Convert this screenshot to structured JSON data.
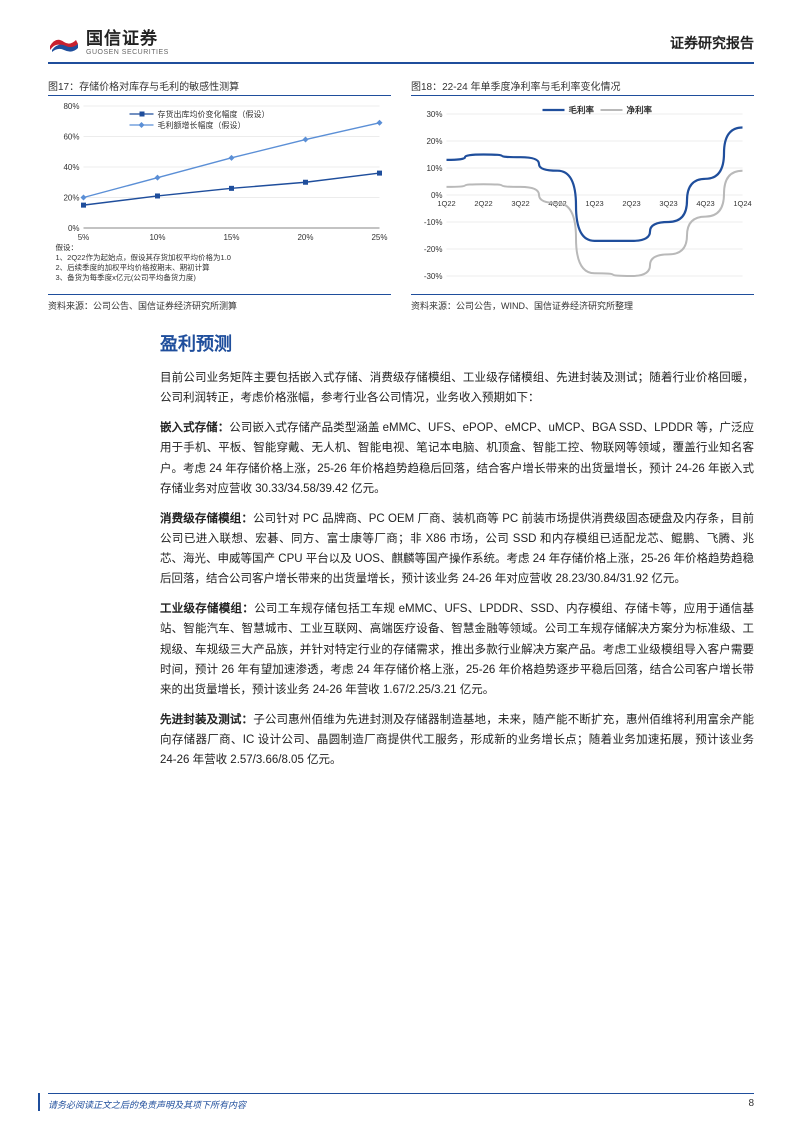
{
  "header": {
    "logo_cn": "国信证券",
    "logo_en": "GUOSEN SECURITIES",
    "report_type": "证券研究报告",
    "logo_colors": {
      "red": "#c8202f",
      "blue": "#1f4e9c"
    },
    "rule_color": "#1f4e9c"
  },
  "chart17": {
    "caption": "图17：存储价格对库存与毛利的敏感性测算",
    "type": "line",
    "x_labels": [
      "5%",
      "10%",
      "15%",
      "20%",
      "25%"
    ],
    "y_ticks": [
      "0%",
      "20%",
      "40%",
      "60%",
      "80%"
    ],
    "ylim": [
      0,
      80
    ],
    "series": [
      {
        "name": "存货出库均价变化幅度（假设）",
        "marker": "square",
        "color": "#1f4e9c",
        "values": [
          15,
          21,
          26,
          30,
          36
        ]
      },
      {
        "name": "毛利额增长幅度（假设）",
        "marker": "diamond",
        "color": "#5b8fd6",
        "values": [
          20,
          33,
          46,
          58,
          69
        ]
      }
    ],
    "assumptions": [
      "假设：",
      "1、2Q22作为起始点，假设其存货加权平均价格为1.0",
      "2、后续季度的加权平均价格按期末、期初计算",
      "3、备货为每季度x亿元(公司平均备货力度)"
    ],
    "source": "资料来源：公司公告、国信证券经济研究所测算",
    "grid_color": "#d9d9d9",
    "axis_color": "#666666",
    "font_size": 8
  },
  "chart18": {
    "caption": "图18：22-24 年单季度净利率与毛利率变化情况",
    "type": "line",
    "x_labels": [
      "1Q22",
      "2Q22",
      "3Q22",
      "4Q22",
      "1Q23",
      "2Q23",
      "3Q23",
      "4Q23",
      "1Q24"
    ],
    "y_ticks": [
      "-30%",
      "-20%",
      "-10%",
      "0%",
      "10%",
      "20%",
      "30%"
    ],
    "ylim": [
      -30,
      30
    ],
    "series": [
      {
        "name": "毛利率",
        "color": "#1f4e9c",
        "width": 2.2,
        "values": [
          13,
          15,
          14,
          9,
          -17,
          -17,
          -10,
          6,
          25
        ]
      },
      {
        "name": "净利率",
        "color": "#b9b9b9",
        "width": 2.0,
        "values": [
          3,
          4,
          3,
          -3,
          -29,
          -30,
          -22,
          -8,
          9
        ]
      }
    ],
    "source": "资料来源：公司公告，WIND、国信证券经济研究所整理",
    "grid_color": "#d9d9d9",
    "axis_color": "#666666",
    "font_size": 8
  },
  "section": {
    "title": "盈利预测",
    "intro": "目前公司业务矩阵主要包括嵌入式存储、消费级存储模组、工业级存储模组、先进封装及测试；随着行业价格回暖，公司利润转正，考虑价格涨幅，参考行业各公司情况，业务收入预期如下：",
    "p1_label": "嵌入式存储：",
    "p1_body": "公司嵌入式存储产品类型涵盖 eMMC、UFS、ePOP、eMCP、uMCP、BGA SSD、LPDDR 等，广泛应用于手机、平板、智能穿戴、无人机、智能电视、笔记本电脑、机顶盒、智能工控、物联网等领域，覆盖行业知名客户。考虑 24 年存储价格上涨，25-26 年价格趋势趋稳后回落，结合客户增长带来的出货量增长，预计 24-26 年嵌入式存储业务对应营收 30.33/34.58/39.42 亿元。",
    "p2_label": "消费级存储模组：",
    "p2_body": "公司针对 PC 品牌商、PC OEM 厂商、装机商等 PC 前装市场提供消费级固态硬盘及内存条，目前公司已进入联想、宏碁、同方、富士康等厂商；非 X86 市场，公司 SSD 和内存模组已适配龙芯、鲲鹏、飞腾、兆芯、海光、申威等国产 CPU 平台以及 UOS、麒麟等国产操作系统。考虑 24 年存储价格上涨，25-26 年价格趋势趋稳后回落，结合公司客户增长带来的出货量增长，预计该业务 24-26 年对应营收 28.23/30.84/31.92 亿元。",
    "p3_label": "工业级存储模组：",
    "p3_body": "公司工车规存储包括工车规 eMMC、UFS、LPDDR、SSD、内存模组、存储卡等，应用于通信基站、智能汽车、智慧城市、工业互联网、高端医疗设备、智慧金融等领域。公司工车规存储解决方案分为标准级、工规级、车规级三大产品族，并针对特定行业的存储需求，推出多款行业解决方案产品。考虑工业级模组导入客户需要时间，预计 26 年有望加速渗透，考虑 24 年存储价格上涨，25-26 年价格趋势逐步平稳后回落，结合公司客户增长带来的出货量增长，预计该业务 24-26 年营收 1.67/2.25/3.21 亿元。",
    "p4_label": "先进封装及测试：",
    "p4_body": "子公司惠州佰维为先进封测及存储器制造基地，未来，随产能不断扩充，惠州佰维将利用富余产能向存储器厂商、IC 设计公司、晶圆制造厂商提供代工服务，形成新的业务增长点；随着业务加速拓展，预计该业务 24-26 年营收 2.57/3.66/8.05 亿元。"
  },
  "footer": {
    "disclaimer": "请务必阅读正文之后的免责声明及其项下所有内容",
    "page": "8"
  }
}
